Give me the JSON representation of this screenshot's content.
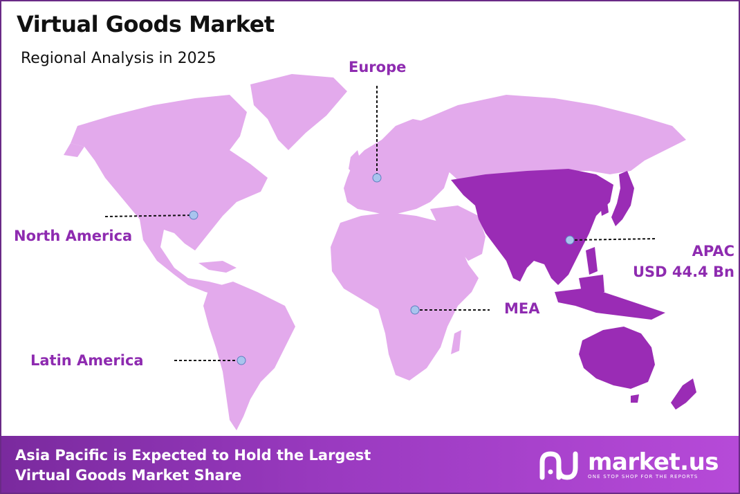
{
  "title": "Virtual Goods Market",
  "subtitle": "Regional Analysis in 2025",
  "regions": {
    "north_america": "North America",
    "europe": "Europe",
    "mea": "MEA",
    "latin_america": "Latin America",
    "apac": "APAC",
    "apac_value": "USD 44.4 Bn"
  },
  "footer": {
    "line1": "Asia Pacific is Expected to Hold the Largest",
    "line2": "Virtual Goods Market Share"
  },
  "logo": {
    "name": "market.us",
    "tagline": "ONE STOP SHOP FOR THE REPORTS"
  },
  "colors": {
    "land": "#e3aaec",
    "apac_highlight": "#9a2cb5",
    "label": "#8e2bb0",
    "marker": "#a9c4ee"
  }
}
